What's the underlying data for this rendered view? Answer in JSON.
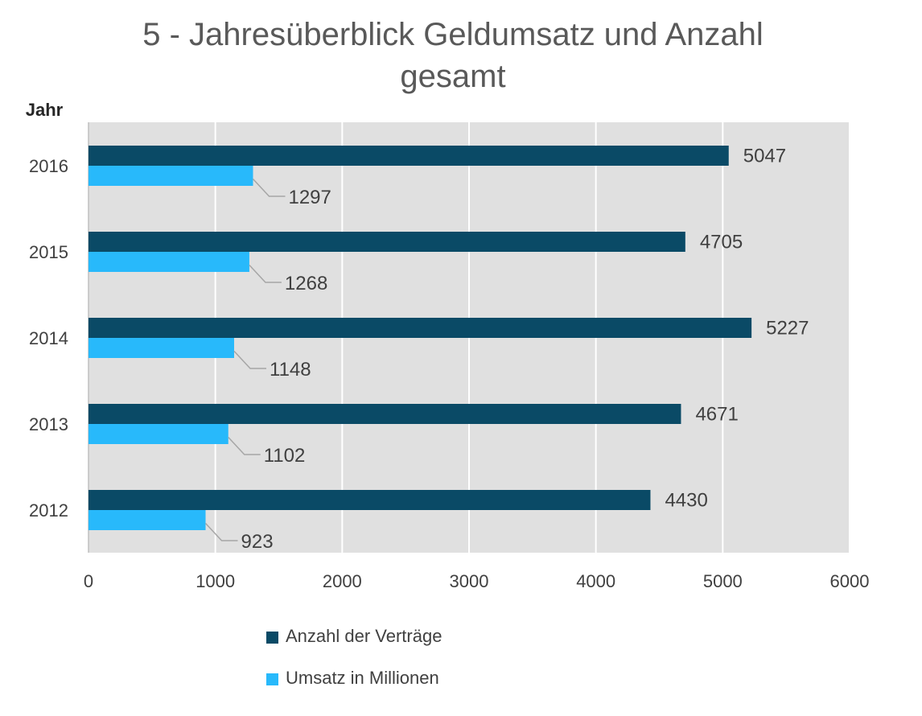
{
  "chart_data": {
    "type": "bar",
    "orientation": "horizontal",
    "title_line1": "5 - Jahresüberblick Geldumsatz und  Anzahl",
    "title_line2": "gesamt",
    "ylabel": "Jahr",
    "xlabel": "",
    "categories": [
      "2016",
      "2015",
      "2014",
      "2013",
      "2012"
    ],
    "xlim": [
      0,
      6000
    ],
    "x_ticks": [
      0,
      1000,
      2000,
      3000,
      4000,
      5000,
      6000
    ],
    "grid": true,
    "legend_position": "bottom",
    "series": [
      {
        "name": "Anzahl der Verträge",
        "color": "#0a4a66",
        "values": [
          5047,
          4705,
          5227,
          4671,
          4430
        ]
      },
      {
        "name": "Umsatz in Millionen",
        "color": "#28b9fb",
        "values": [
          1297,
          1268,
          1148,
          1102,
          923
        ]
      }
    ]
  }
}
